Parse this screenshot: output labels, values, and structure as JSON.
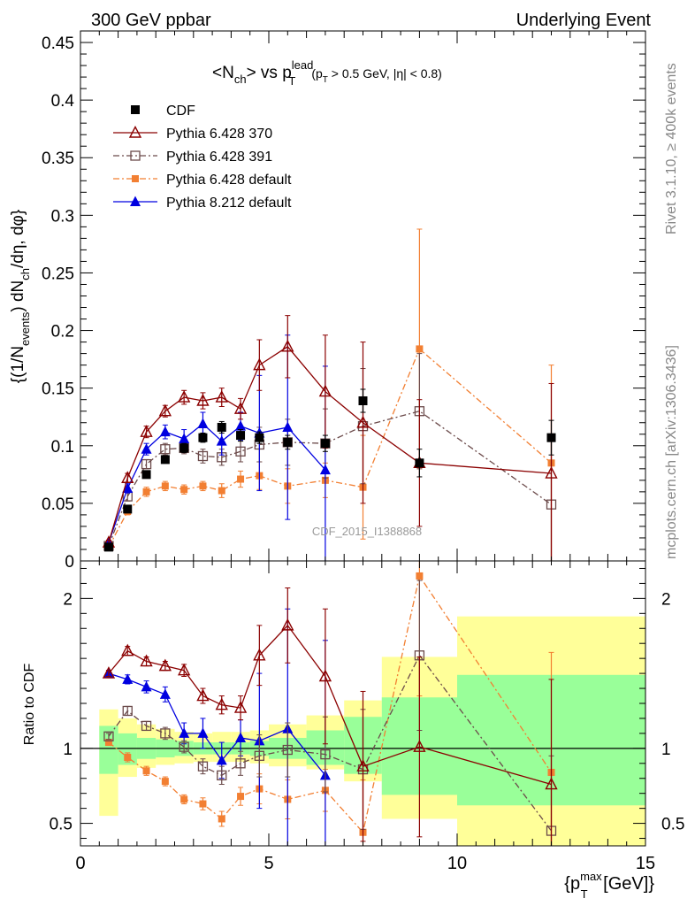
{
  "header": {
    "left": "300 GeV ppbar",
    "right": "Underlying Event"
  },
  "side_text": {
    "rivet": "Rivet 3.1.10, ≥ 400k events",
    "mcplots": "mcplots.cern.ch [arXiv:1306.3436]"
  },
  "watermark": "CDF_2015_I1388868",
  "chart_data": [
    {
      "type": "scatter",
      "panel": "main",
      "title": "<Nch> vs pT lead (pT > 0.5 GeV, |η| < 0.8)",
      "title_parts": {
        "lead_in": "<N",
        "ch": "ch",
        "mid": "> vs p",
        "lead": "lead",
        "T": "T",
        "cuts": "(p",
        "cuts2": " > 0.5 GeV, |η| < 0.8)"
      },
      "ylabel": "{(1/N_events) dN_ch/dη, dφ}",
      "ylabel_parts": {
        "a": "{(1/N",
        "sub1": "events",
        "b": ") dN",
        "sub2": "ch",
        "c": "/dη, dφ}"
      },
      "xlim": [
        0,
        15
      ],
      "ylim": [
        0,
        0.46
      ],
      "x_ticks": [
        0,
        5,
        10,
        15
      ],
      "y_ticks": [
        0,
        0.05,
        0.1,
        0.15,
        0.2,
        0.25,
        0.3,
        0.35,
        0.4,
        0.45
      ],
      "y_tick_labels": [
        "0",
        "0.05",
        "0.1",
        "0.15",
        "0.2",
        "0.25",
        "0.3",
        "0.35",
        "0.4",
        "0.45"
      ],
      "legend_position": "top-left",
      "series": [
        {
          "name": "CDF",
          "color": "#000000",
          "style": "data",
          "x": [
            0.75,
            1.25,
            1.75,
            2.25,
            2.75,
            3.25,
            3.75,
            4.25,
            4.75,
            5.5,
            6.5,
            7.5,
            9.0,
            12.5
          ],
          "y": [
            0.012,
            0.045,
            0.075,
            0.088,
            0.098,
            0.107,
            0.116,
            0.109,
            0.107,
            0.103,
            0.102,
            0.139,
            0.085,
            0.107
          ],
          "err": [
            0.002,
            0.003,
            0.003,
            0.003,
            0.004,
            0.004,
            0.005,
            0.005,
            0.005,
            0.006,
            0.007,
            0.01,
            0.012,
            0.015
          ]
        },
        {
          "name": "Pythia 6.428 370",
          "color": "#8b0000",
          "style": "open-triangle",
          "x": [
            0.75,
            1.25,
            1.75,
            2.25,
            2.75,
            3.25,
            3.75,
            4.25,
            4.75,
            5.5,
            6.5,
            7.5,
            9.0,
            12.5
          ],
          "y": [
            0.016,
            0.072,
            0.112,
            0.13,
            0.142,
            0.139,
            0.142,
            0.132,
            0.17,
            0.186,
            0.147,
            0.12,
            0.085,
            0.076
          ],
          "err": [
            0.002,
            0.004,
            0.005,
            0.005,
            0.006,
            0.007,
            0.008,
            0.009,
            0.022,
            0.027,
            0.049,
            0.07,
            0.055,
            0.078
          ]
        },
        {
          "name": "Pythia 6.428 391",
          "color": "#6b4a4a",
          "style": "open-square",
          "x": [
            0.75,
            1.25,
            1.75,
            2.25,
            2.75,
            3.25,
            3.75,
            4.25,
            4.75,
            5.5,
            6.5,
            7.5,
            9.0,
            12.5
          ],
          "y": [
            0.013,
            0.056,
            0.084,
            0.097,
            0.098,
            0.091,
            0.09,
            0.095,
            0.101,
            0.103,
            0.102,
            0.117,
            0.13,
            0.049
          ],
          "err": [
            0.002,
            0.004,
            0.004,
            0.005,
            0.005,
            0.006,
            0.007,
            0.009,
            0.015,
            0.02,
            0.03,
            0.05,
            0.05,
            0.06
          ]
        },
        {
          "name": "Pythia 6.428 default",
          "color": "#f27f32",
          "style": "filled-square",
          "x": [
            0.75,
            1.25,
            1.75,
            2.25,
            2.75,
            3.25,
            3.75,
            4.25,
            4.75,
            5.5,
            6.5,
            7.5,
            9.0,
            12.5
          ],
          "y": [
            0.012,
            0.043,
            0.06,
            0.065,
            0.062,
            0.065,
            0.061,
            0.071,
            0.074,
            0.065,
            0.07,
            0.064,
            0.184,
            0.085
          ],
          "err": [
            0.002,
            0.003,
            0.004,
            0.004,
            0.004,
            0.004,
            0.006,
            0.007,
            0.012,
            0.015,
            0.015,
            0.045,
            0.104,
            0.085
          ]
        },
        {
          "name": "Pythia 8.212 default",
          "color": "#0000e0",
          "style": "filled-triangle",
          "x": [
            0.75,
            1.25,
            1.75,
            2.25,
            2.75,
            3.25,
            3.75,
            4.25,
            4.75,
            5.5,
            6.5
          ],
          "y": [
            0.016,
            0.063,
            0.097,
            0.112,
            0.106,
            0.119,
            0.104,
            0.117,
            0.111,
            0.116,
            0.079
          ],
          "err": [
            0.002,
            0.004,
            0.005,
            0.006,
            0.008,
            0.01,
            0.012,
            0.012,
            0.05,
            0.08,
            0.09
          ]
        }
      ]
    },
    {
      "type": "line",
      "panel": "ratio",
      "ylabel": "Ratio to CDF",
      "xlabel": "{p_T^max [GeV]}",
      "xlabel_parts": {
        "a": "{p",
        "sup": "max",
        "sub": "T",
        "b": " [GeV]}"
      },
      "xlim": [
        0,
        15
      ],
      "ylim": [
        0.35,
        2.25
      ],
      "x_ticks": [
        0,
        5,
        10,
        15
      ],
      "x_tick_labels": [
        "0",
        "5",
        "10",
        "15"
      ],
      "y_ticks": [
        0.5,
        1,
        2
      ],
      "y_tick_labels": [
        "0.5",
        "1",
        "2"
      ],
      "reference_line": 1,
      "bands": {
        "bin_edges": [
          0.5,
          1.0,
          1.5,
          2.0,
          2.5,
          3.0,
          3.5,
          4.0,
          4.5,
          5.0,
          6.0,
          7.0,
          8.0,
          10.0,
          15.0
        ],
        "yellow_low": [
          0.55,
          0.81,
          0.87,
          0.89,
          0.9,
          0.91,
          0.91,
          0.91,
          0.9,
          0.88,
          0.86,
          0.78,
          0.53,
          0.35
        ],
        "yellow_high": [
          1.26,
          1.2,
          1.16,
          1.13,
          1.11,
          1.1,
          1.11,
          1.11,
          1.12,
          1.16,
          1.22,
          1.32,
          1.61,
          1.88
        ],
        "green_low": [
          0.83,
          0.89,
          0.93,
          0.94,
          0.95,
          0.96,
          0.96,
          0.96,
          0.95,
          0.93,
          0.89,
          0.83,
          0.69,
          0.62
        ],
        "green_high": [
          1.15,
          1.1,
          1.07,
          1.06,
          1.05,
          1.04,
          1.04,
          1.04,
          1.05,
          1.07,
          1.12,
          1.21,
          1.34,
          1.49
        ]
      },
      "series": [
        {
          "name": "Pythia 6.428 370",
          "x": [
            0.75,
            1.25,
            1.75,
            2.25,
            2.75,
            3.25,
            3.75,
            4.25,
            4.75,
            5.5,
            6.5,
            7.5,
            9.0,
            12.5
          ],
          "y": [
            1.5,
            1.65,
            1.58,
            1.55,
            1.52,
            1.35,
            1.29,
            1.27,
            1.62,
            1.82,
            1.48,
            0.88,
            1.01,
            0.76
          ],
          "err": [
            0.02,
            0.03,
            0.03,
            0.03,
            0.04,
            0.05,
            0.06,
            0.08,
            0.2,
            0.25,
            0.45,
            0.5,
            0.6,
            0.7
          ]
        },
        {
          "name": "Pythia 6.428 391",
          "x": [
            0.75,
            1.25,
            1.75,
            2.25,
            2.75,
            3.25,
            3.75,
            4.25,
            4.75,
            5.5,
            6.5,
            7.5,
            9.0,
            12.5
          ],
          "y": [
            1.08,
            1.25,
            1.15,
            1.1,
            1.01,
            0.88,
            0.82,
            0.9,
            0.95,
            0.99,
            0.96,
            0.86,
            1.62,
            0.45
          ],
          "err": [
            0.02,
            0.03,
            0.03,
            0.04,
            0.04,
            0.05,
            0.06,
            0.08,
            0.14,
            0.18,
            0.25,
            0.4,
            0.5,
            0.5
          ]
        },
        {
          "name": "Pythia 6.428 default",
          "x": [
            0.75,
            1.25,
            1.75,
            2.25,
            2.75,
            3.25,
            3.75,
            4.25,
            4.75,
            5.5,
            6.5,
            7.5,
            9.0,
            12.5
          ],
          "y": [
            1.04,
            0.94,
            0.85,
            0.78,
            0.66,
            0.63,
            0.53,
            0.68,
            0.73,
            0.66,
            0.72,
            0.44,
            2.15,
            0.84
          ],
          "err": [
            0.02,
            0.03,
            0.03,
            0.03,
            0.03,
            0.04,
            0.05,
            0.06,
            0.1,
            0.13,
            0.14,
            0.35,
            0.8,
            0.8
          ]
        },
        {
          "name": "Pythia 8.212 default",
          "x": [
            0.75,
            1.25,
            1.75,
            2.25,
            2.75,
            3.25,
            3.75,
            4.25,
            4.75,
            5.5,
            6.5
          ],
          "y": [
            1.5,
            1.46,
            1.41,
            1.36,
            1.1,
            1.1,
            0.92,
            1.07,
            1.05,
            1.13,
            0.82
          ],
          "err": [
            0.02,
            0.03,
            0.04,
            0.05,
            0.07,
            0.1,
            0.12,
            0.12,
            0.45,
            0.8,
            0.9
          ]
        }
      ]
    }
  ]
}
